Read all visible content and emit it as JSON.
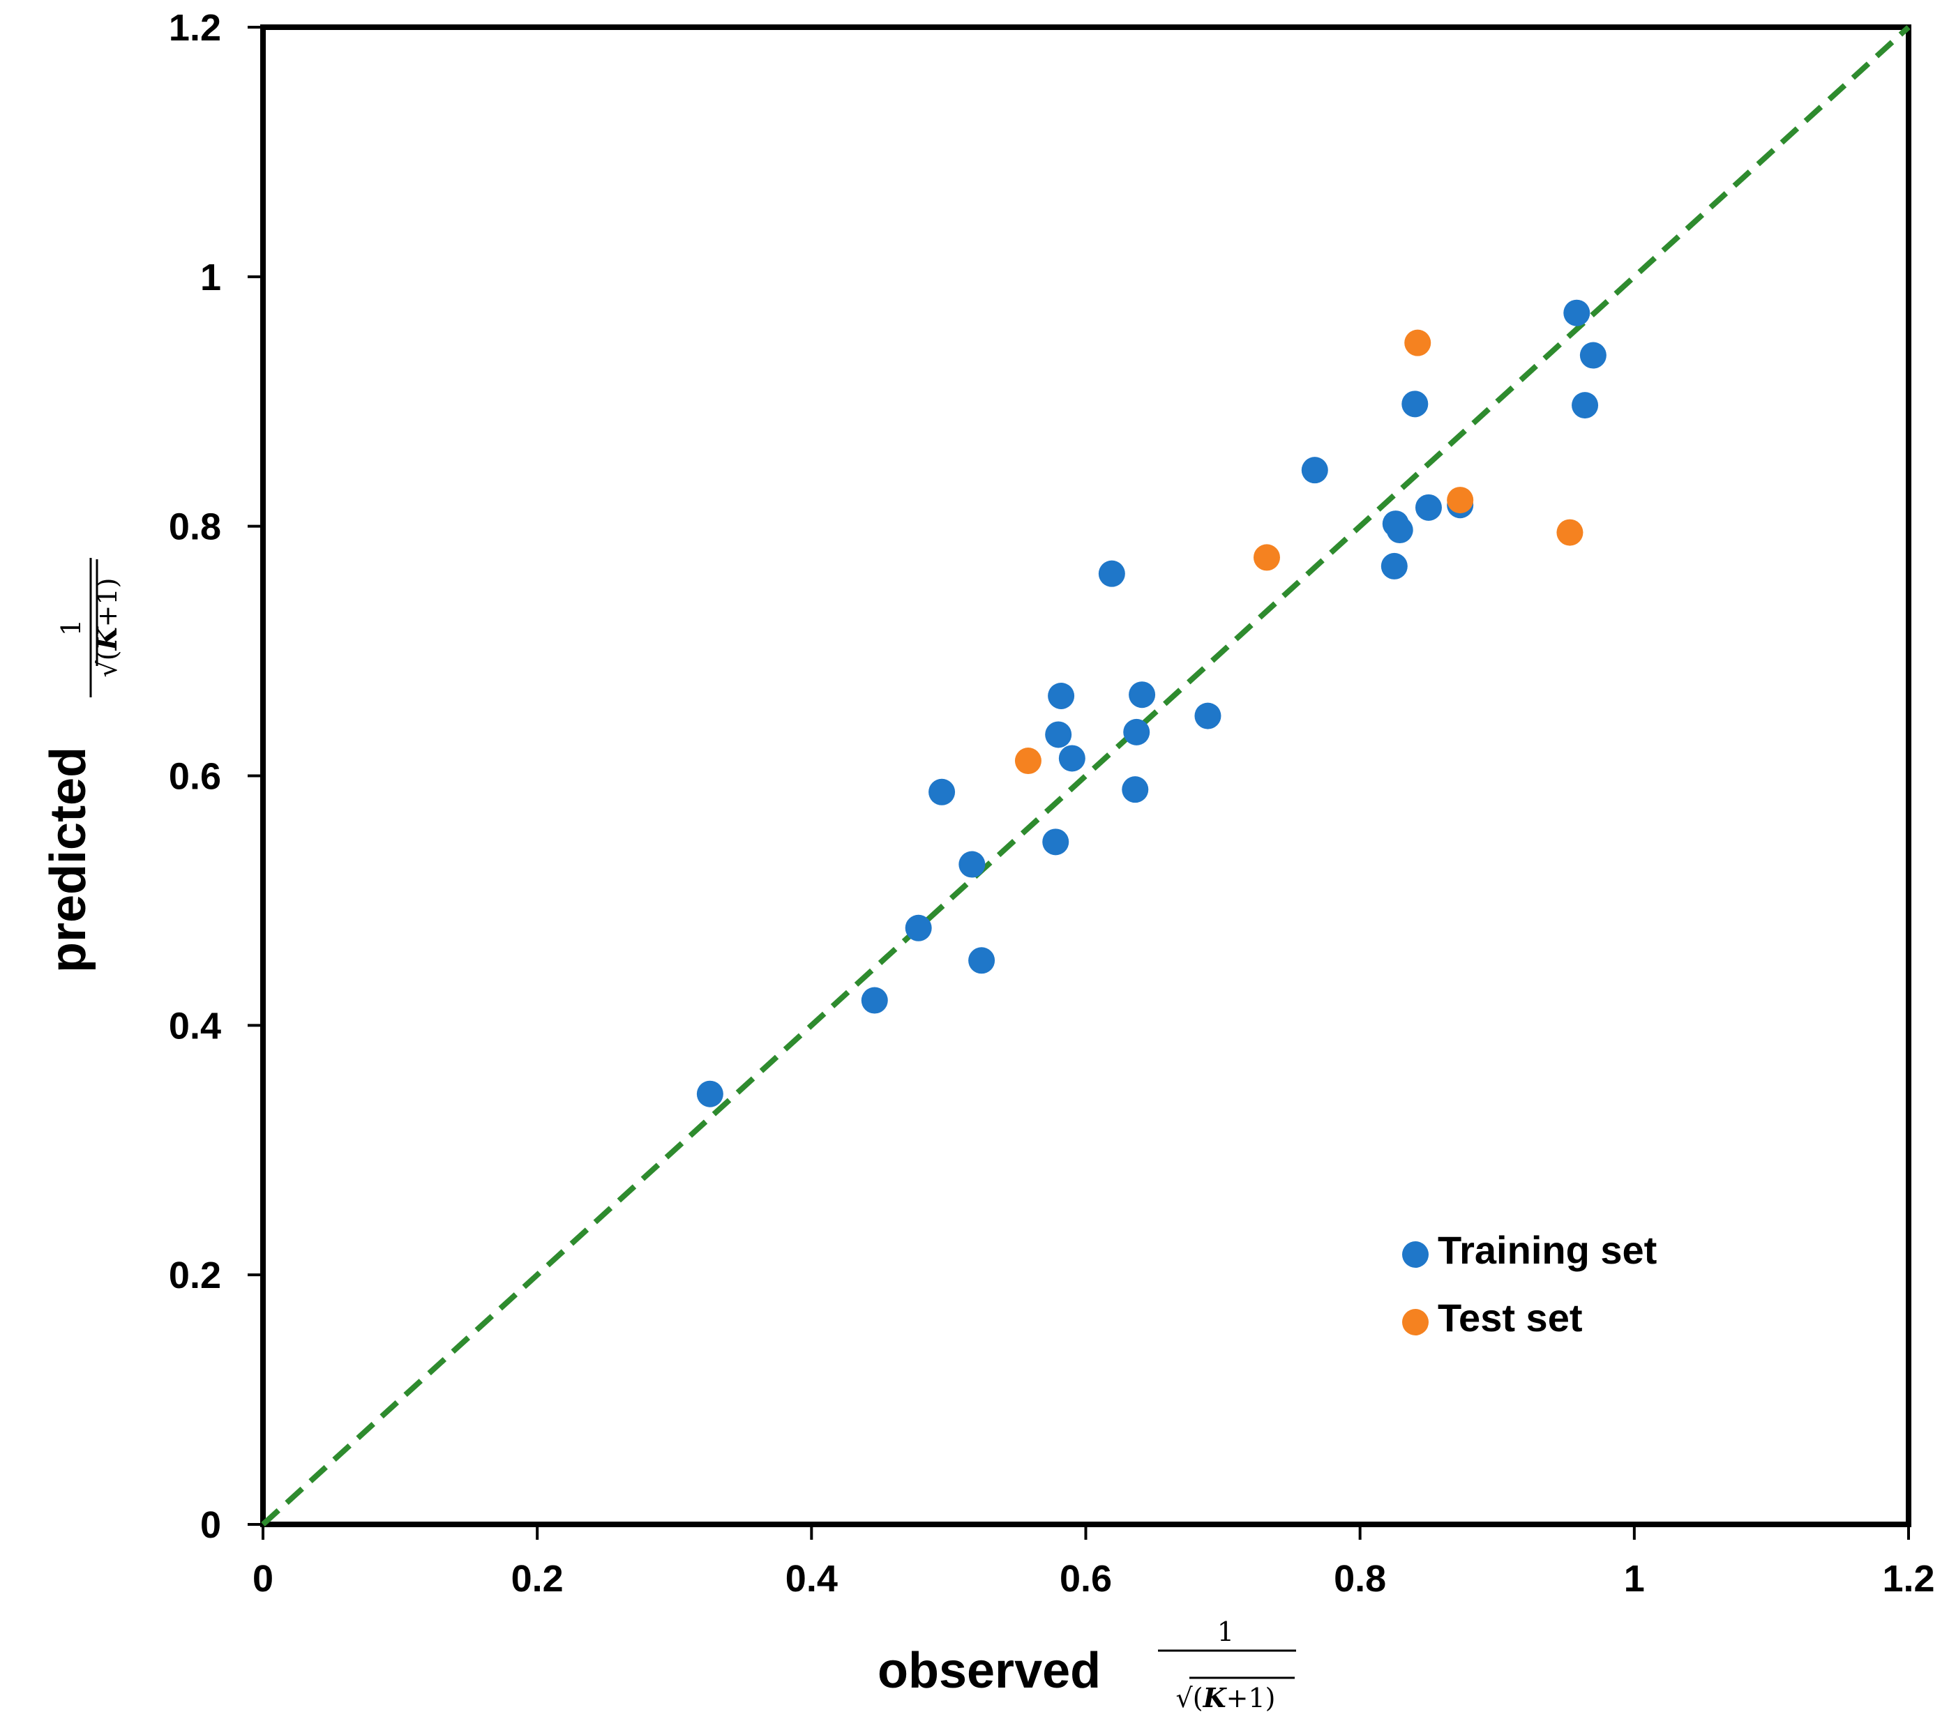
{
  "chart_data": {
    "type": "scatter",
    "title": "",
    "xlabel": "observed",
    "ylabel": "predicted",
    "axis_fraction": {
      "numerator": "1",
      "radical": "√",
      "open": "(",
      "var": "K",
      "op": "+1",
      "close": ")"
    },
    "xlim": [
      0,
      1.2
    ],
    "ylim": [
      0,
      1.2
    ],
    "xticks": [
      0,
      0.2,
      0.4,
      0.6,
      0.8,
      1,
      1.2
    ],
    "xtick_labels": [
      "0",
      "0.2",
      "0.4",
      "0.6",
      "0.8",
      "1",
      "1.2"
    ],
    "yticks": [
      0,
      0.2,
      0.4,
      0.6,
      0.8,
      1,
      1.2
    ],
    "ytick_labels": [
      "0",
      "0.2",
      "0.4",
      "0.6",
      "0.8",
      "1",
      "1.2"
    ],
    "grid": false,
    "legend_position": "bottom-right inside",
    "identity_line": {
      "from": [
        0,
        0
      ],
      "to": [
        1.2,
        1.2
      ],
      "color": "#2e8b2e",
      "style": "dashed"
    },
    "series": [
      {
        "name": "Training set",
        "color": "#1f77c9",
        "points": [
          [
            0.326,
            0.345
          ],
          [
            0.446,
            0.42
          ],
          [
            0.478,
            0.478
          ],
          [
            0.495,
            0.587
          ],
          [
            0.517,
            0.529
          ],
          [
            0.524,
            0.452
          ],
          [
            0.578,
            0.547
          ],
          [
            0.58,
            0.633
          ],
          [
            0.582,
            0.664
          ],
          [
            0.59,
            0.614
          ],
          [
            0.619,
            0.762
          ],
          [
            0.636,
            0.589
          ],
          [
            0.637,
            0.635
          ],
          [
            0.641,
            0.665
          ],
          [
            0.689,
            0.648
          ],
          [
            0.767,
            0.845
          ],
          [
            0.825,
            0.768
          ],
          [
            0.826,
            0.802
          ],
          [
            0.829,
            0.797
          ],
          [
            0.84,
            0.898
          ],
          [
            0.85,
            0.815
          ],
          [
            0.873,
            0.817
          ],
          [
            0.958,
            0.971
          ],
          [
            0.964,
            0.897
          ],
          [
            0.97,
            0.937
          ]
        ]
      },
      {
        "name": "Test set",
        "color": "#f58220",
        "points": [
          [
            0.558,
            0.612
          ],
          [
            0.732,
            0.775
          ],
          [
            0.842,
            0.947
          ],
          [
            0.873,
            0.821
          ],
          [
            0.953,
            0.795
          ]
        ]
      }
    ]
  }
}
